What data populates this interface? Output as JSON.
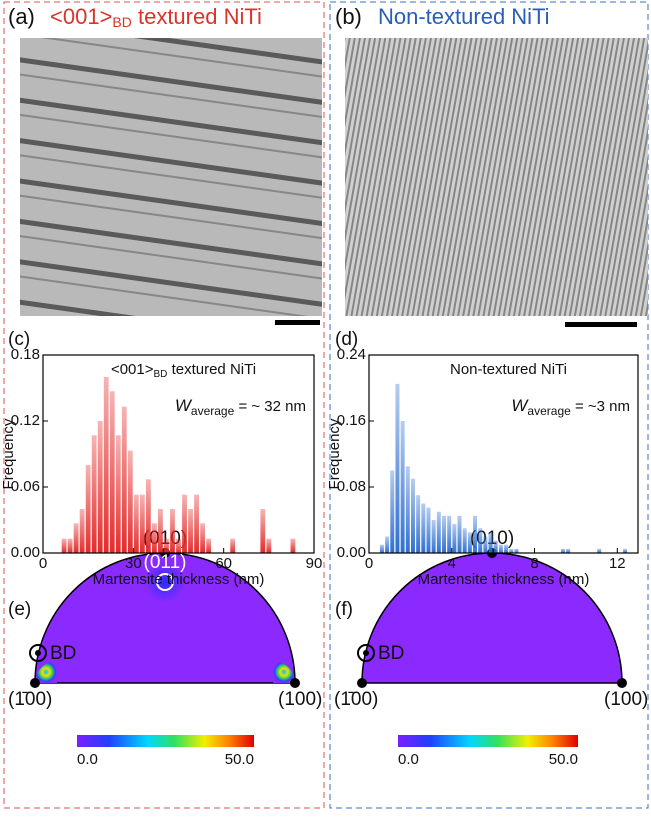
{
  "panels": {
    "a": {
      "label": "(a)",
      "title_main": "<001>",
      "title_sub": "BD",
      "title_rest": " textured NiTi"
    },
    "b": {
      "label": "(b)",
      "title": "Non-textured NiTi"
    },
    "c": {
      "label": "(c)"
    },
    "d": {
      "label": "(d)"
    },
    "e": {
      "label": "(e)",
      "bd": "BD",
      "top": "(010)",
      "spot": "(011)",
      "left": "(1̄00)",
      "right": "(100)",
      "cbar_min": "0.0",
      "cbar_max": "50.0"
    },
    "f": {
      "label": "(f)",
      "bd": "BD",
      "top": "(010)",
      "left": "(1̄00)",
      "right": "(100)",
      "cbar_min": "0.0",
      "cbar_max": "50.0"
    }
  },
  "chart_data": [
    {
      "type": "histogram",
      "title_main": "<001>",
      "title_sub": "BD",
      "title_rest": " textured NiTi",
      "annotation_main": "W",
      "annotation_sub": "average",
      "annotation_rest": " = ~ 32 nm",
      "x_label": "Martensite thickness (nm)",
      "y_label": "Frequency",
      "color": "#e32b2b",
      "bins": [
        6,
        8,
        10,
        12,
        14,
        16,
        18,
        20,
        22,
        24,
        26,
        28,
        30,
        32,
        34,
        36,
        38,
        40,
        42,
        44,
        46,
        48,
        50,
        52,
        54,
        56,
        58,
        60,
        62,
        64,
        66,
        68,
        70,
        72,
        74,
        76,
        78,
        80,
        82,
        84
      ],
      "values": [
        0.013,
        0.013,
        0.027,
        0.04,
        0.08,
        0.107,
        0.12,
        0.16,
        0.147,
        0.107,
        0.133,
        0.093,
        0.053,
        0.053,
        0.067,
        0.027,
        0.04,
        0.013,
        0.04,
        0.013,
        0.053,
        0.04,
        0.053,
        0.027,
        0.013,
        0,
        0,
        0,
        0.013,
        0,
        0,
        0,
        0,
        0.04,
        0.013,
        0,
        0,
        0,
        0.013
      ],
      "xlim": [
        0,
        90
      ],
      "xticks": [
        0,
        30,
        60,
        90
      ],
      "ylim": [
        0,
        0.18
      ],
      "yticks": [
        {
          "value": 0,
          "label": "0.00"
        },
        {
          "value": 0.06,
          "label": "0.06"
        },
        {
          "value": 0.12,
          "label": "0.12"
        },
        {
          "value": 0.18,
          "label": "0.18"
        }
      ]
    },
    {
      "type": "histogram",
      "title": "Non-textured NiTi",
      "annotation_main": "W",
      "annotation_sub": "average",
      "annotation_rest": " = ~3 nm",
      "x_label": "Martensite thickness (nm)",
      "y_label": "Frequency",
      "color": "#2f6fd1",
      "bins": [
        0.5,
        0.75,
        1,
        1.25,
        1.5,
        1.75,
        2,
        2.25,
        2.5,
        2.75,
        3,
        3.25,
        3.5,
        3.75,
        4,
        4.25,
        4.5,
        4.75,
        5,
        5.25,
        5.5,
        5.75,
        6,
        6.25,
        6.5,
        6.75,
        7,
        7.25,
        7.5,
        7.75,
        8,
        8.25,
        8.5,
        8.75,
        9,
        9.25,
        9.5,
        9.75,
        10,
        10.25,
        10.5,
        10.75,
        11,
        11.25,
        11.5,
        11.75,
        12,
        12.25,
        12.5
      ],
      "values": [
        0.01,
        0.02,
        0.1,
        0.205,
        0.16,
        0.105,
        0.09,
        0.07,
        0.06,
        0.055,
        0.04,
        0.05,
        0.045,
        0.045,
        0.035,
        0.045,
        0.03,
        0.025,
        0.045,
        0.03,
        0.02,
        0.025,
        0.015,
        0.01,
        0.01,
        0.005,
        0.005,
        0,
        0,
        0,
        0,
        0,
        0,
        0,
        0,
        0.005,
        0.005,
        0,
        0,
        0,
        0,
        0,
        0.005,
        0,
        0,
        0,
        0,
        0.005
      ],
      "xlim": [
        0,
        13
      ],
      "xticks": [
        0,
        4,
        8,
        12
      ],
      "ylim": [
        0,
        0.24
      ],
      "yticks": [
        {
          "value": 0,
          "label": "0.00"
        },
        {
          "value": 0.08,
          "label": "0.08"
        },
        {
          "value": 0.16,
          "label": "0.16"
        },
        {
          "value": 0.24,
          "label": "0.24"
        }
      ]
    }
  ]
}
